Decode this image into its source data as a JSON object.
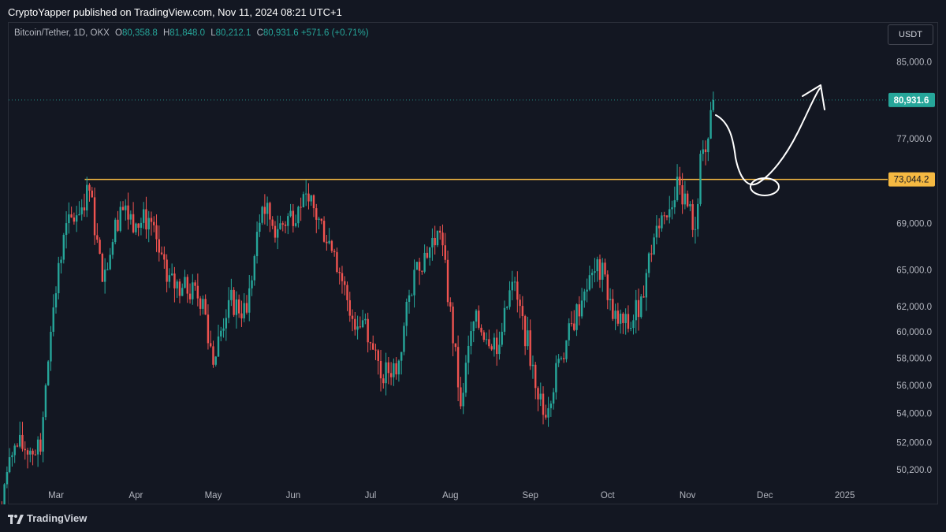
{
  "header": {
    "publish_line": "CryptoYapper published on TradingView.com, Nov 11, 2024 08:21 UTC+1"
  },
  "legend": {
    "symbol": "Bitcoin/Tether, 1D, OKX",
    "o_label": "O",
    "o_value": "80,358.8",
    "h_label": "H",
    "h_value": "81,848.0",
    "l_label": "L",
    "l_value": "80,212.1",
    "c_label": "C",
    "c_value": "80,931.6",
    "change": "+571.6 (+0.71%)"
  },
  "toolbar": {
    "currency_label": "USDT"
  },
  "footer": {
    "brand": "TradingView"
  },
  "colors": {
    "background": "#131722",
    "up": "#26a69a",
    "down": "#ef5350",
    "level_line": "#f5b942",
    "text": "#b2b5be"
  },
  "chart_data": {
    "type": "candlestick",
    "x_axis_labels": [
      "Mar",
      "Apr",
      "May",
      "Jun",
      "Jul",
      "Aug",
      "Sep",
      "Oct",
      "Nov",
      "Dec",
      "2025"
    ],
    "y_axis_labels": [
      "85,000.0",
      "77,000.0",
      "69,000.0",
      "65,000.0",
      "62,000.0",
      "60,000.0",
      "58,000.0",
      "56,000.0",
      "54,000.0",
      "52,000.0",
      "50,200.0"
    ],
    "y_scale": "log",
    "ylim": [
      49300,
      89500
    ],
    "last_price": 80931.6,
    "last_price_label": "80,931.6",
    "horizontal_level": 73044.2,
    "horizontal_level_label": "73,044.2",
    "anchors": [
      [
        "2024-02-08",
        48000
      ],
      [
        "2024-02-14",
        51800
      ],
      [
        "2024-02-24",
        51400
      ],
      [
        "2024-02-28",
        60000
      ],
      [
        "2024-03-04",
        68000
      ],
      [
        "2024-03-14",
        72000
      ],
      [
        "2024-03-19",
        64000
      ],
      [
        "2024-03-26",
        70500
      ],
      [
        "2024-04-01",
        69000
      ],
      [
        "2024-04-06",
        69500
      ],
      [
        "2024-04-13",
        64000
      ],
      [
        "2024-04-19",
        63500
      ],
      [
        "2024-04-27",
        62600
      ],
      [
        "2024-05-01",
        57500
      ],
      [
        "2024-05-07",
        62500
      ],
      [
        "2024-05-14",
        61500
      ],
      [
        "2024-05-20",
        70500
      ],
      [
        "2024-05-26",
        68500
      ],
      [
        "2024-06-03",
        70500
      ],
      [
        "2024-06-07",
        71000
      ],
      [
        "2024-06-17",
        66500
      ],
      [
        "2024-06-24",
        61000
      ],
      [
        "2024-06-29",
        61000
      ],
      [
        "2024-07-05",
        56500
      ],
      [
        "2024-07-12",
        57800
      ],
      [
        "2024-07-18",
        65000
      ],
      [
        "2024-07-28",
        68200
      ],
      [
        "2024-08-05",
        54500
      ],
      [
        "2024-08-10",
        60800
      ],
      [
        "2024-08-20",
        59000
      ],
      [
        "2024-08-25",
        64000
      ],
      [
        "2024-09-02",
        57500
      ],
      [
        "2024-09-06",
        53900
      ],
      [
        "2024-09-13",
        58000
      ],
      [
        "2024-09-22",
        63200
      ],
      [
        "2024-09-29",
        65600
      ],
      [
        "2024-10-03",
        61000
      ],
      [
        "2024-10-10",
        60300
      ],
      [
        "2024-10-14",
        62800
      ],
      [
        "2024-10-20",
        68800
      ],
      [
        "2024-10-29",
        72500
      ],
      [
        "2024-11-04",
        68500
      ],
      [
        "2024-11-06",
        75500
      ],
      [
        "2024-11-09",
        77000
      ],
      [
        "2024-11-11",
        80931.6
      ]
    ]
  }
}
